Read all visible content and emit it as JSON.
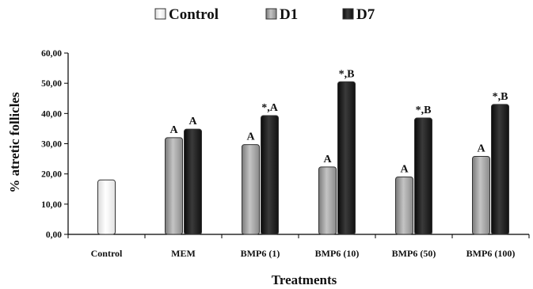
{
  "chart_data": {
    "type": "bar",
    "xlabel": "Treatments",
    "ylabel": "% atretic follicles",
    "ylim": [
      0,
      60
    ],
    "yticks": [
      "0,00",
      "10,00",
      "20,00",
      "30,00",
      "40,00",
      "50,00",
      "60,00"
    ],
    "categories": [
      "Control",
      "MEM",
      "BMP6 (1)",
      "BMP6 (10)",
      "BMP6 (50)",
      "BMP6 (100)"
    ],
    "legend_position": "top",
    "series": [
      {
        "name": "Control",
        "color": "#ffffff",
        "values": [
          18,
          null,
          null,
          null,
          null,
          null
        ],
        "labels": [
          "",
          "",
          "",
          "",
          "",
          ""
        ]
      },
      {
        "name": "D1",
        "color": "#a8a8a8",
        "values": [
          null,
          32,
          29.7,
          22.3,
          19,
          25.8
        ],
        "labels": [
          "",
          "A",
          "A",
          "A",
          "A",
          "A"
        ]
      },
      {
        "name": "D7",
        "color": "#1e1e1e",
        "values": [
          null,
          34.8,
          39.3,
          50.5,
          38.5,
          43
        ],
        "labels": [
          "",
          "A",
          "*,A",
          "*,B",
          "*,B",
          "*,B"
        ]
      }
    ]
  }
}
